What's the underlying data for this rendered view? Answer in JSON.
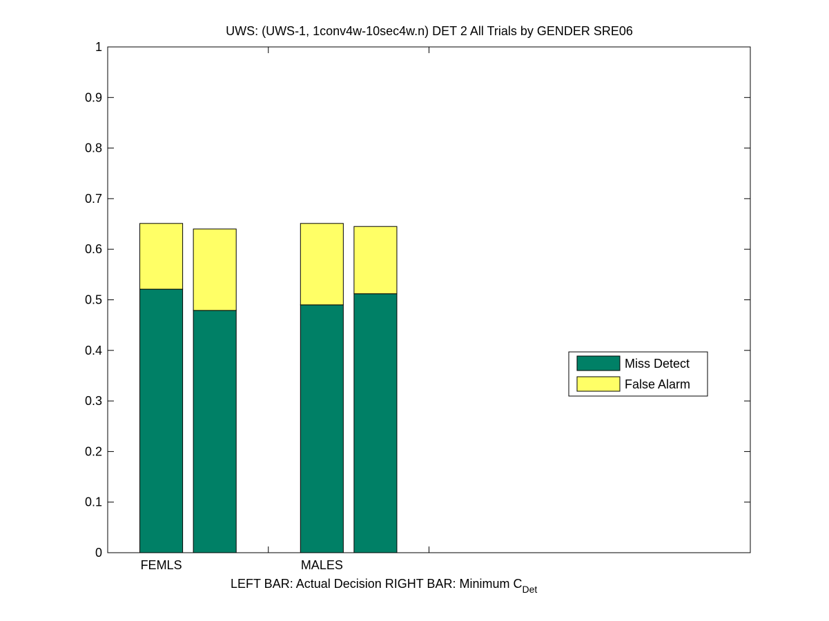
{
  "chart_data": {
    "type": "bar",
    "stacked": true,
    "title": "UWS: (UWS-1, 1conv4w-10sec4w.n) DET 2 All Trials by GENDER SRE06",
    "xlabel_main": "LEFT BAR: Actual Decision     RIGHT BAR: Minimum C",
    "xlabel_sub": "Det",
    "categories": [
      "FEMLS",
      "MALES"
    ],
    "bars_per_category": [
      "Actual Decision",
      "Minimum C_Det"
    ],
    "series": [
      {
        "name": "Miss Detect",
        "color": "#008066",
        "values": [
          [
            0.521,
            0.479
          ],
          [
            0.49,
            0.512
          ]
        ]
      },
      {
        "name": "False Alarm",
        "color": "#ffff66",
        "values": [
          [
            0.13,
            0.161
          ],
          [
            0.161,
            0.133
          ]
        ]
      }
    ],
    "totals": [
      [
        0.651,
        0.64
      ],
      [
        0.651,
        0.645
      ]
    ],
    "ylim": [
      0,
      1
    ],
    "yticks": [
      "0",
      "0.1",
      "0.2",
      "0.3",
      "0.4",
      "0.5",
      "0.6",
      "0.7",
      "0.8",
      "0.9",
      "1"
    ],
    "xlim": [
      0,
      12
    ],
    "xticks": [
      3,
      6
    ],
    "legend_position": "right-middle",
    "grid": false
  }
}
